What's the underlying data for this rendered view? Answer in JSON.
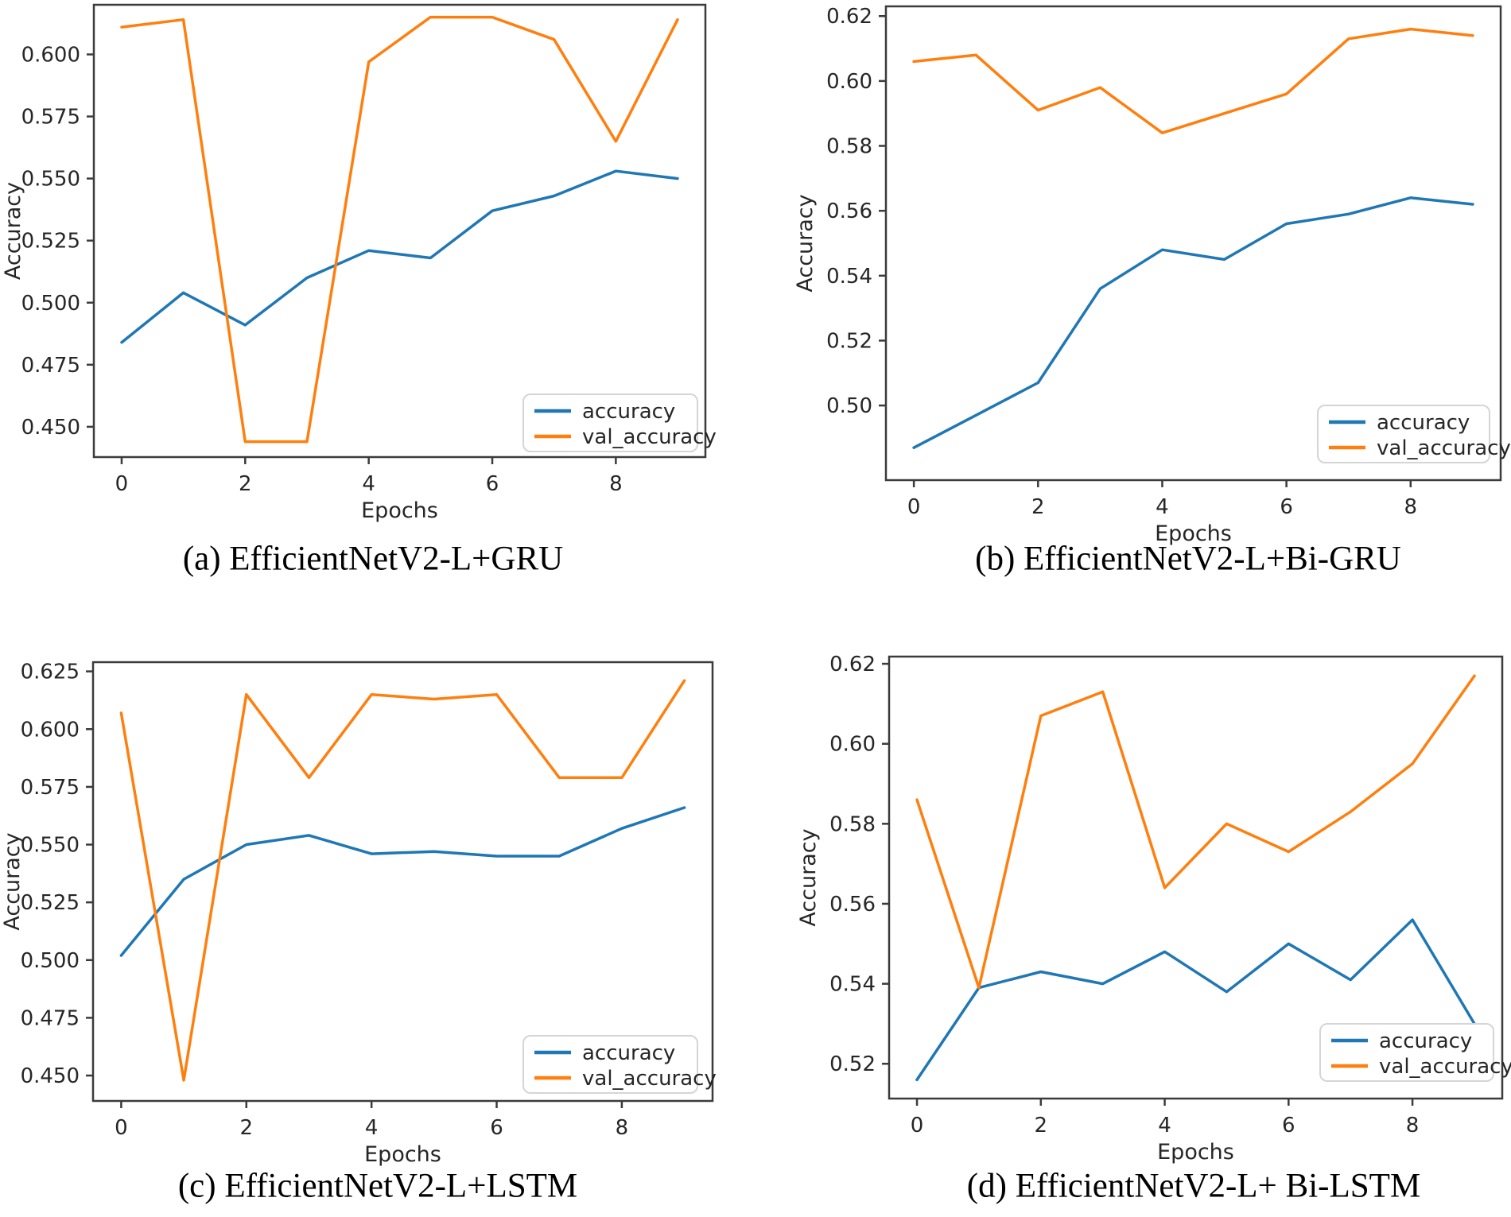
{
  "page": {
    "background": "#ffffff"
  },
  "colors": {
    "accuracy_line": "#1f77b4",
    "val_accuracy_line": "#ff7f0e",
    "frame": "#3b3b3b",
    "tick_text": "#262626",
    "legend_border": "#d5d5d5",
    "legend_fill": "#ffffff"
  },
  "chart_data": [
    {
      "id": "a",
      "type": "line",
      "caption": "(a) EfficientNetV2-L+GRU",
      "xlabel": "Epochs",
      "ylabel": "Accuracy",
      "x": [
        0,
        1,
        2,
        3,
        4,
        5,
        6,
        7,
        8,
        9
      ],
      "xtick_labels": [
        "0",
        "2",
        "4",
        "6",
        "8"
      ],
      "xticks": [
        0,
        2,
        4,
        6,
        8
      ],
      "ytick_labels": [
        "0.450",
        "0.475",
        "0.500",
        "0.525",
        "0.550",
        "0.575",
        "0.600"
      ],
      "yticks": [
        0.45,
        0.475,
        0.5,
        0.525,
        0.55,
        0.575,
        0.6
      ],
      "xlim": [
        -0.45,
        9.45
      ],
      "ylim": [
        0.4378,
        0.62
      ],
      "grid": false,
      "legend_position": "lower right",
      "legend_entries": [
        "accuracy",
        "val_accuracy"
      ],
      "series": [
        {
          "name": "accuracy",
          "color": "#1f77b4",
          "values": [
            0.484,
            0.504,
            0.491,
            0.51,
            0.521,
            0.518,
            0.537,
            0.543,
            0.553,
            0.55
          ]
        },
        {
          "name": "val_accuracy",
          "color": "#ff7f0e",
          "values": [
            0.611,
            0.614,
            0.444,
            0.444,
            0.597,
            0.615,
            0.615,
            0.606,
            0.565,
            0.614
          ]
        }
      ]
    },
    {
      "id": "b",
      "type": "line",
      "caption": "(b) EfficientNetV2-L+Bi-GRU",
      "xlabel": "Epochs",
      "ylabel": "Accuracy",
      "x": [
        0,
        1,
        2,
        3,
        4,
        5,
        6,
        7,
        8,
        9
      ],
      "xtick_labels": [
        "0",
        "2",
        "4",
        "6",
        "8"
      ],
      "xticks": [
        0,
        2,
        4,
        6,
        8
      ],
      "ytick_labels": [
        "0.50",
        "0.52",
        "0.54",
        "0.56",
        "0.58",
        "0.60",
        "0.62"
      ],
      "yticks": [
        0.5,
        0.52,
        0.54,
        0.56,
        0.58,
        0.6,
        0.62
      ],
      "xlim": [
        -0.45,
        9.45
      ],
      "ylim": [
        0.477,
        0.623
      ],
      "grid": false,
      "legend_position": "lower right",
      "legend_entries": [
        "accuracy",
        "val_accuracy"
      ],
      "series": [
        {
          "name": "accuracy",
          "color": "#1f77b4",
          "values": [
            0.487,
            0.497,
            0.507,
            0.536,
            0.548,
            0.545,
            0.556,
            0.559,
            0.564,
            0.562
          ]
        },
        {
          "name": "val_accuracy",
          "color": "#ff7f0e",
          "values": [
            0.606,
            0.608,
            0.591,
            0.598,
            0.584,
            0.59,
            0.596,
            0.613,
            0.616,
            0.614
          ]
        }
      ]
    },
    {
      "id": "c",
      "type": "line",
      "caption": "(c) EfficientNetV2-L+LSTM",
      "xlabel": "Epochs",
      "ylabel": "Accuracy",
      "x": [
        0,
        1,
        2,
        3,
        4,
        5,
        6,
        7,
        8,
        9
      ],
      "xtick_labels": [
        "0",
        "2",
        "4",
        "6",
        "8"
      ],
      "xticks": [
        0,
        2,
        4,
        6,
        8
      ],
      "ytick_labels": [
        "0.450",
        "0.475",
        "0.500",
        "0.525",
        "0.550",
        "0.575",
        "0.600",
        "0.625"
      ],
      "yticks": [
        0.45,
        0.475,
        0.5,
        0.525,
        0.55,
        0.575,
        0.6,
        0.625
      ],
      "xlim": [
        -0.45,
        9.45
      ],
      "ylim": [
        0.439,
        0.629
      ],
      "grid": false,
      "legend_position": "lower right",
      "legend_entries": [
        "accuracy",
        "val_accuracy"
      ],
      "series": [
        {
          "name": "accuracy",
          "color": "#1f77b4",
          "values": [
            0.502,
            0.535,
            0.55,
            0.554,
            0.546,
            0.547,
            0.545,
            0.545,
            0.557,
            0.566
          ]
        },
        {
          "name": "val_accuracy",
          "color": "#ff7f0e",
          "values": [
            0.607,
            0.448,
            0.615,
            0.579,
            0.615,
            0.613,
            0.615,
            0.579,
            0.579,
            0.621
          ]
        }
      ]
    },
    {
      "id": "d",
      "type": "line",
      "caption": "(d) EfficientNetV2-L+ Bi-LSTM",
      "xlabel": "Epochs",
      "ylabel": "Accuracy",
      "x": [
        0,
        1,
        2,
        3,
        4,
        5,
        6,
        7,
        8,
        9
      ],
      "xtick_labels": [
        "0",
        "2",
        "4",
        "6",
        "8"
      ],
      "xticks": [
        0,
        2,
        4,
        6,
        8
      ],
      "ytick_labels": [
        "0.52",
        "0.54",
        "0.56",
        "0.58",
        "0.60",
        "0.62"
      ],
      "yticks": [
        0.52,
        0.54,
        0.56,
        0.58,
        0.6,
        0.62
      ],
      "xlim": [
        -0.45,
        9.45
      ],
      "ylim": [
        0.5113,
        0.6218
      ],
      "grid": false,
      "legend_position": "lower right",
      "legend_entries": [
        "accuracy",
        "val_accuracy"
      ],
      "series": [
        {
          "name": "accuracy",
          "color": "#1f77b4",
          "values": [
            0.516,
            0.539,
            0.543,
            0.54,
            0.548,
            0.538,
            0.55,
            0.541,
            0.556,
            0.53
          ]
        },
        {
          "name": "val_accuracy",
          "color": "#ff7f0e",
          "values": [
            0.586,
            0.539,
            0.607,
            0.613,
            0.564,
            0.58,
            0.573,
            0.583,
            0.595,
            0.617
          ]
        }
      ]
    }
  ]
}
